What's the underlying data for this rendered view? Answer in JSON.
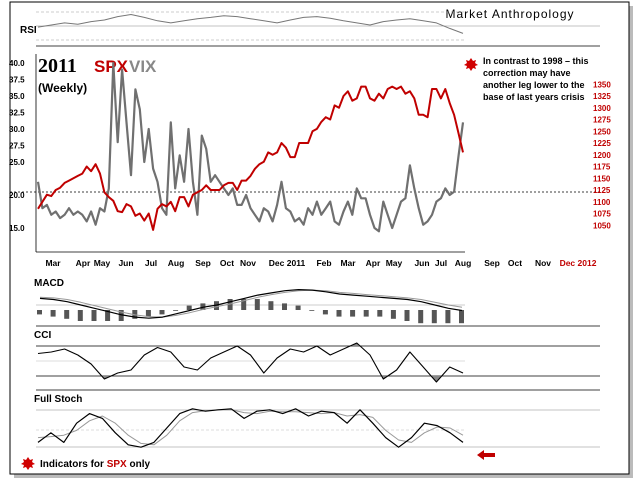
{
  "header": {
    "brand": "Market Anthropology",
    "title_year": "2011",
    "title_spx": "SPX",
    "title_vix": "VIX",
    "subtitle": "(Weekly)"
  },
  "annotations": {
    "note": [
      "In contrast to 1998 – this",
      "correction may have",
      "another leg lower to the",
      "base of last years crisis"
    ],
    "footer_prefix": "Indicators for ",
    "footer_spx": "SPX",
    "footer_suffix": " only"
  },
  "colors": {
    "spx": "#c00000",
    "vix": "#707070",
    "indicator": "#000000",
    "signal": "#999999",
    "hist": "#555555",
    "rsi": "#777777"
  },
  "icons": {
    "note_bullet": "red-starburst-icon",
    "footer_bullet": "red-starburst-icon",
    "arrow": "red-left-arrow-icon"
  },
  "chart_data": [
    {
      "type": "line",
      "title": "2011 SPX VIX",
      "subtitle": "(Weekly)",
      "x_tick_labels": [
        "Mar",
        "Apr",
        "May",
        "Jun",
        "Jul",
        "Aug",
        "Sep",
        "Oct",
        "Nov",
        "Dec 2011",
        "Feb",
        "Mar",
        "Apr",
        "May",
        "Jun",
        "Jul",
        "Aug",
        "Sep",
        "Oct",
        "Nov",
        "Dec 2012"
      ],
      "x_tick_labels_future": [
        "Sep",
        "Oct",
        "Nov",
        "Dec 2012"
      ],
      "y_left_ticks": [
        15.0,
        20.0,
        25.0,
        27.5,
        30.0,
        32.5,
        35.0,
        37.5,
        40.0
      ],
      "y_left_tick_labels": [
        "15.0",
        "20.0",
        "25.0",
        "27.5",
        "30.0",
        "32.5",
        "35.0",
        "37.5",
        "40.0"
      ],
      "y_right_ticks": [
        1050,
        1075,
        1100,
        1125,
        1150,
        1175,
        1200,
        1225,
        1250,
        1275,
        1300,
        1325,
        1350
      ],
      "y_right_tick_labels": [
        "1050",
        "1075",
        "1100",
        "1125",
        "1150",
        "1175",
        "1200",
        "1225",
        "1250",
        "1275",
        "1300",
        "1325",
        "1350"
      ],
      "reference_line": 1125,
      "series": [
        {
          "name": "SPX",
          "axis": "right",
          "values": [
            1085,
            1100,
            1115,
            1112,
            1125,
            1130,
            1140,
            1145,
            1150,
            1155,
            1160,
            1175,
            1165,
            1180,
            1160,
            1120,
            1110,
            1102,
            1080,
            1078,
            1095,
            1090,
            1070,
            1075,
            1060,
            1075,
            1040,
            1085,
            1095,
            1090,
            1100,
            1080,
            1110,
            1110,
            1090,
            1115,
            1120,
            1125,
            1135,
            1125,
            1125,
            1125,
            1135,
            1140,
            1140,
            1125,
            1145,
            1145,
            1155,
            1170,
            1180,
            1185,
            1205,
            1200,
            1205,
            1225,
            1215,
            1195,
            1195,
            1225,
            1225,
            1225,
            1250,
            1255,
            1270,
            1280,
            1275,
            1305,
            1300,
            1325,
            1335,
            1315,
            1320,
            1345,
            1345,
            1320,
            1315,
            1330,
            1320,
            1340,
            1345,
            1340,
            1345,
            1330,
            1335,
            1320,
            1285,
            1285,
            1280,
            1340,
            1340,
            1320,
            1340,
            1310,
            1285,
            1245,
            1205
          ]
        },
        {
          "name": "VIX",
          "axis": "left",
          "values": [
            22,
            18,
            18.5,
            17,
            17.5,
            16.5,
            17,
            18,
            17,
            17.5,
            17,
            16,
            17.5,
            15.5,
            18,
            17.5,
            21,
            40,
            28,
            39,
            31,
            23,
            36,
            33,
            25,
            30,
            24,
            22,
            18,
            17,
            31,
            21,
            26,
            22,
            30,
            22,
            17,
            29,
            27,
            22,
            23,
            22,
            21,
            20,
            21,
            18.5,
            18.5,
            20,
            18,
            17,
            16,
            18,
            17.5,
            16,
            18.5,
            22,
            18,
            17.5,
            16,
            16.5,
            15.5,
            18,
            17,
            19,
            17,
            18,
            19,
            16,
            15.5,
            17.5,
            19,
            17,
            21,
            19.5,
            19.5,
            17,
            15,
            14.5,
            19,
            17,
            15,
            17,
            19,
            19.5,
            24.5,
            21,
            18,
            15.5,
            16,
            17,
            19,
            19.5,
            21,
            20,
            20.5,
            26,
            31
          ]
        }
      ]
    },
    {
      "type": "line",
      "title": "RSI",
      "series": [
        {
          "name": "RSI",
          "values": [
            45,
            50,
            55,
            52,
            58,
            62,
            70,
            75,
            68,
            60,
            55,
            60,
            65,
            68,
            72,
            70,
            65,
            60,
            55,
            62,
            68,
            70,
            66,
            60,
            55,
            50,
            58,
            62,
            65,
            60,
            55,
            42,
            30
          ]
        }
      ]
    },
    {
      "type": "bar",
      "title": "MACD",
      "series": [
        {
          "name": "MACD",
          "values": [
            12,
            10,
            6,
            0,
            -6,
            -12,
            -18,
            -22,
            -24,
            -22,
            -16,
            -10,
            -4,
            0,
            6,
            12,
            18,
            22,
            26,
            28,
            27,
            24,
            20,
            18,
            16,
            14,
            12,
            10,
            6,
            0,
            -6,
            -10
          ]
        },
        {
          "name": "Signal",
          "values": [
            14,
            13,
            10,
            5,
            -1,
            -7,
            -13,
            -18,
            -21,
            -22,
            -19,
            -14,
            -8,
            -3,
            2,
            8,
            14,
            19,
            23,
            26,
            27,
            26,
            23,
            21,
            19,
            17,
            15,
            13,
            10,
            5,
            0,
            -4
          ]
        },
        {
          "name": "Histogram",
          "values": [
            -2,
            -3,
            -4,
            -5,
            -5,
            -5,
            -5,
            -4,
            -3,
            -2,
            0,
            2,
            3,
            4,
            5,
            5,
            5,
            4,
            3,
            2,
            0,
            -2,
            -3,
            -3,
            -3,
            -3,
            -4,
            -5,
            -6,
            -6,
            -6,
            -6
          ]
        }
      ]
    },
    {
      "type": "line",
      "title": "CCI",
      "series": [
        {
          "name": "CCI",
          "values": [
            50,
            60,
            80,
            40,
            -20,
            -120,
            -80,
            -60,
            40,
            90,
            60,
            -40,
            -60,
            20,
            60,
            100,
            40,
            -80,
            20,
            80,
            60,
            100,
            40,
            80,
            120,
            40,
            -120,
            -60,
            60,
            -40,
            -140,
            -40,
            -80
          ]
        }
      ]
    },
    {
      "type": "line",
      "title": "Full Stoch",
      "series": [
        {
          "name": "%K",
          "values": [
            20,
            40,
            20,
            60,
            80,
            70,
            40,
            15,
            10,
            20,
            50,
            80,
            90,
            85,
            88,
            90,
            70,
            85,
            88,
            80,
            90,
            75,
            85,
            82,
            60,
            88,
            60,
            30,
            10,
            30,
            60,
            55,
            40,
            20
          ]
        },
        {
          "name": "%D",
          "values": [
            30,
            32,
            35,
            45,
            65,
            75,
            60,
            35,
            18,
            15,
            35,
            65,
            82,
            86,
            88,
            88,
            82,
            80,
            85,
            84,
            84,
            82,
            80,
            82,
            75,
            78,
            72,
            45,
            25,
            20,
            40,
            52,
            50,
            35
          ]
        }
      ]
    }
  ]
}
